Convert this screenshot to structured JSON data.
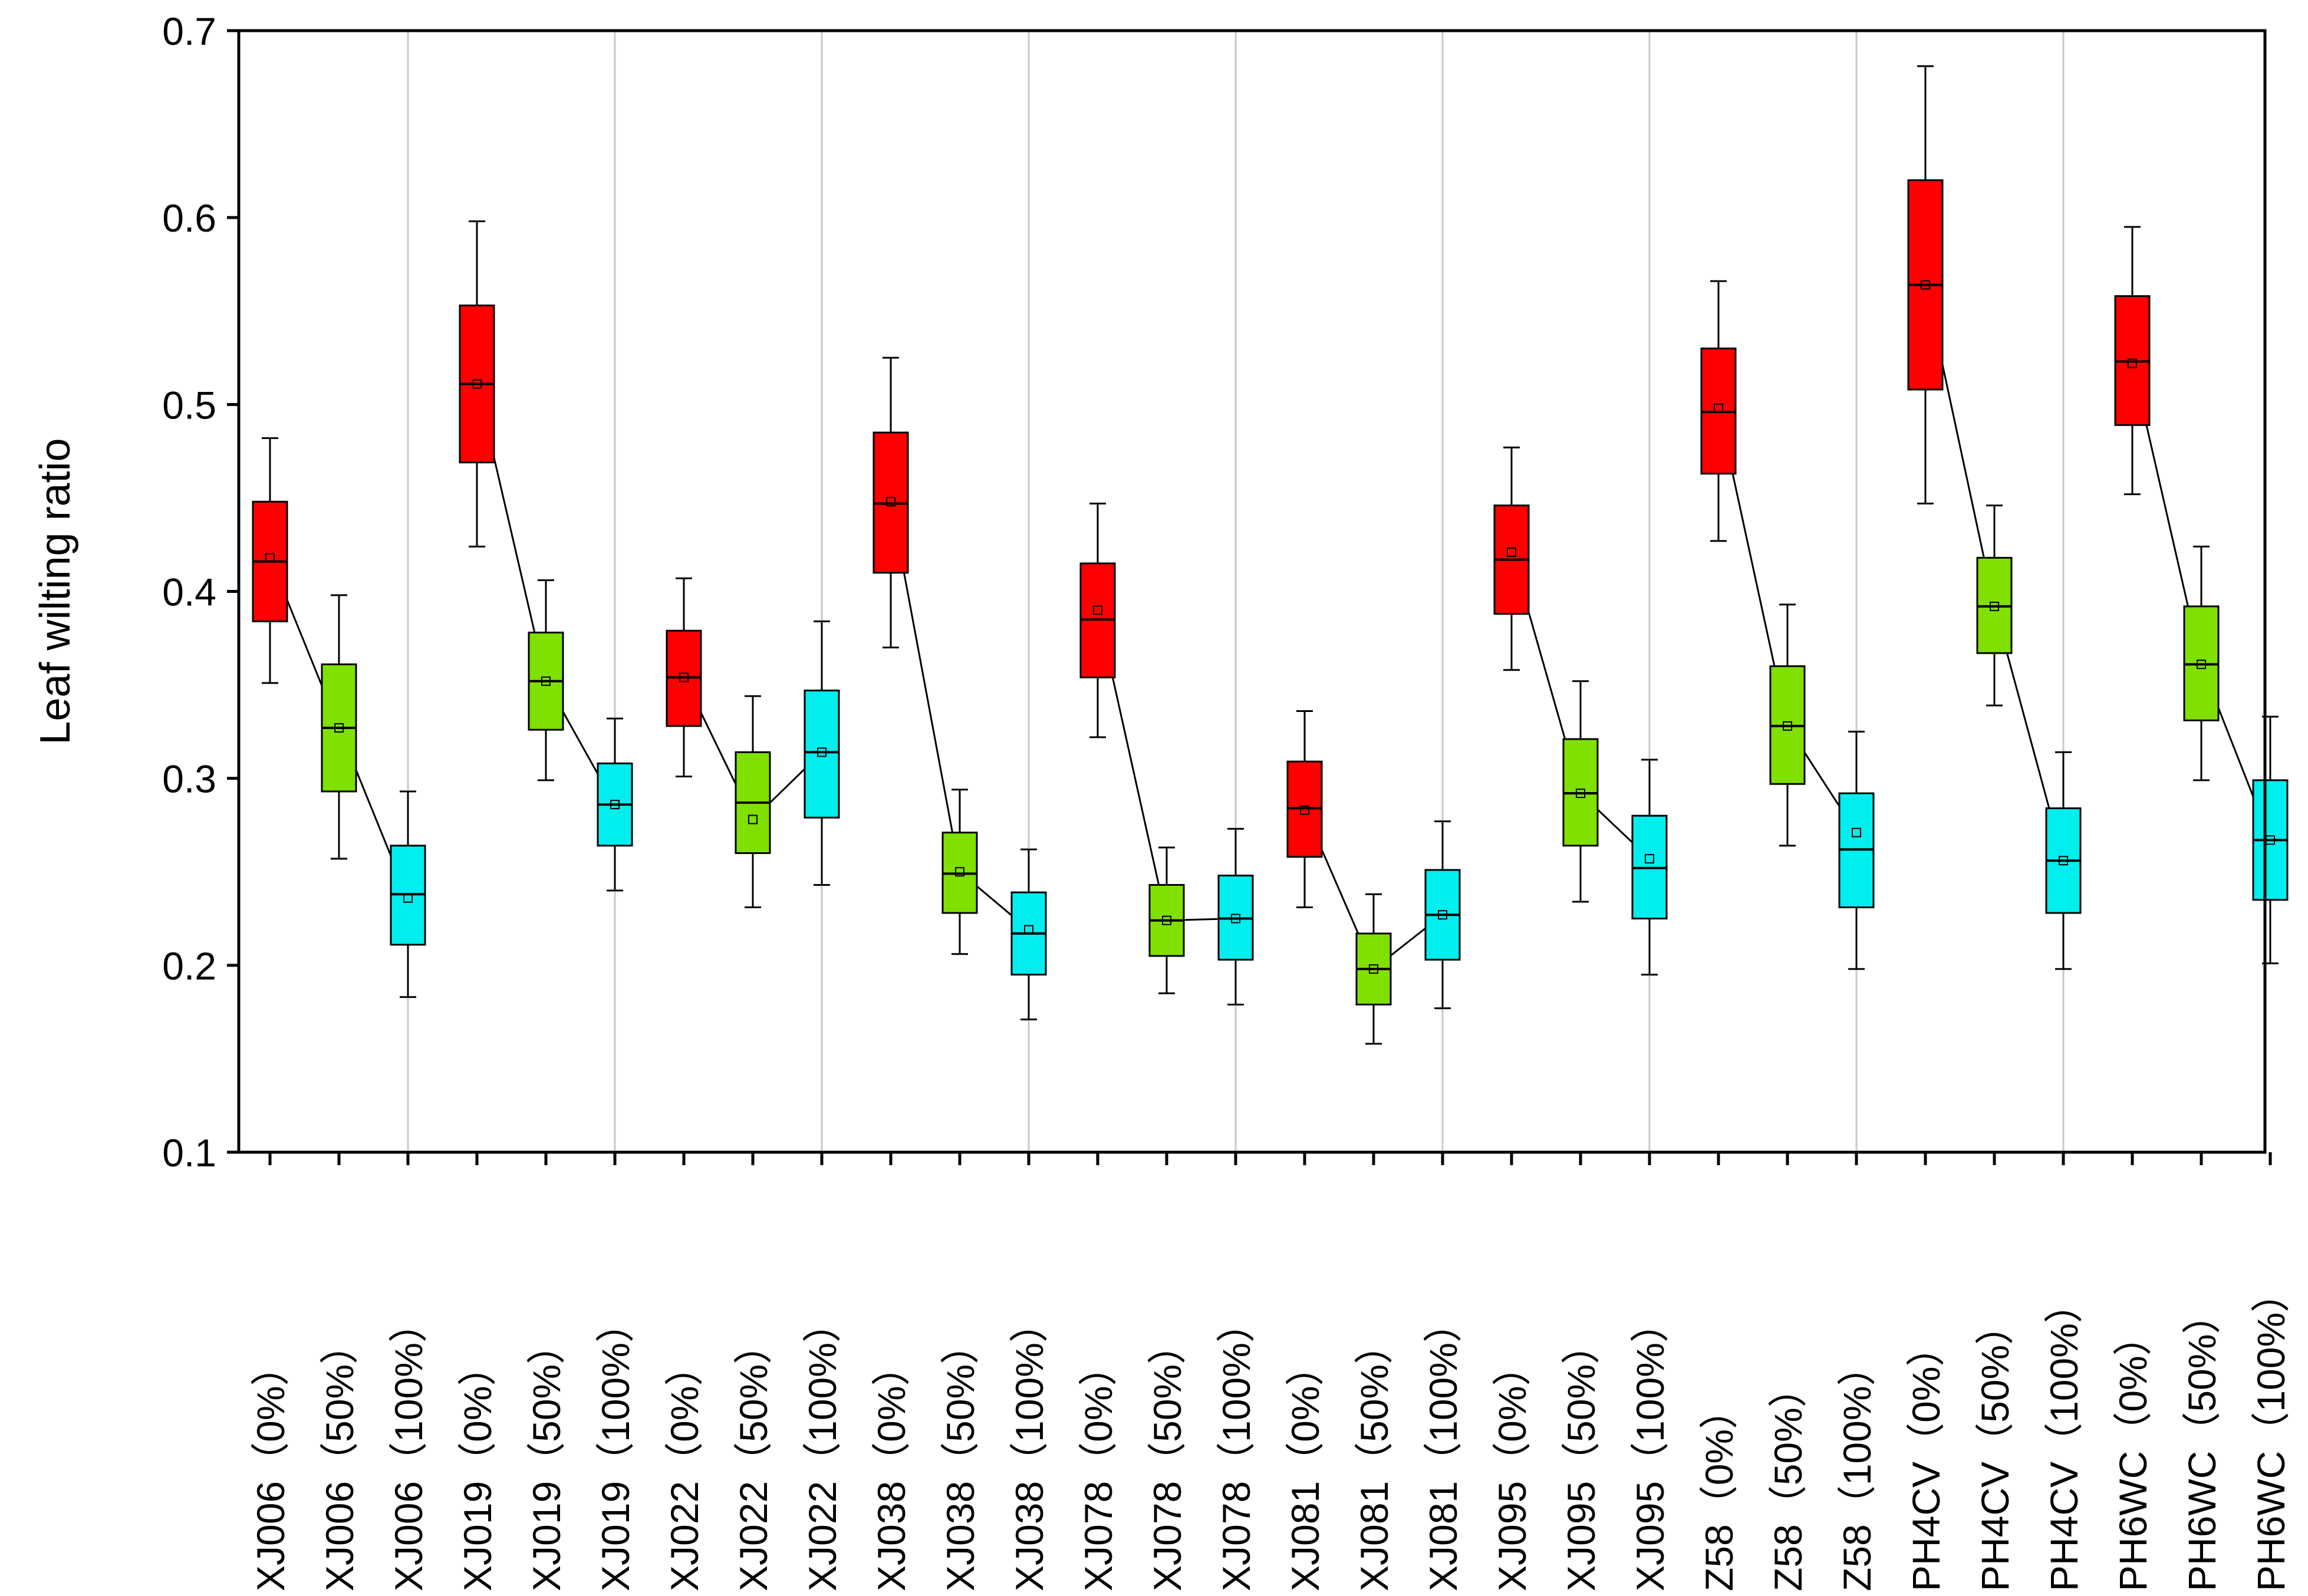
{
  "chart_data": {
    "type": "box",
    "title": "",
    "xlabel": "",
    "ylabel": "Leaf wilting ratio",
    "ylim": [
      0.1,
      0.7
    ],
    "yticks": [
      "0.1",
      "0.2",
      "0.3",
      "0.4",
      "0.5",
      "0.6",
      "0.7"
    ],
    "grid": "vertical lines at every third category",
    "colors": {
      "0%": "#ff0000",
      "50%": "#80e000",
      "100%": "#00eeee"
    },
    "categories": [
      {
        "genotype": "XJ006",
        "treatment": "0%",
        "min": 0.351,
        "q1": 0.384,
        "median": 0.416,
        "q3": 0.448,
        "max": 0.482,
        "mean": 0.418
      },
      {
        "genotype": "XJ006",
        "treatment": "50%",
        "min": 0.257,
        "q1": 0.293,
        "median": 0.327,
        "q3": 0.361,
        "max": 0.398,
        "mean": 0.327
      },
      {
        "genotype": "XJ006",
        "treatment": "100%",
        "min": 0.183,
        "q1": 0.211,
        "median": 0.238,
        "q3": 0.264,
        "max": 0.293,
        "mean": 0.236
      },
      {
        "genotype": "XJ019",
        "treatment": "0%",
        "min": 0.424,
        "q1": 0.469,
        "median": 0.511,
        "q3": 0.553,
        "max": 0.598,
        "mean": 0.511
      },
      {
        "genotype": "XJ019",
        "treatment": "50%",
        "min": 0.299,
        "q1": 0.326,
        "median": 0.352,
        "q3": 0.378,
        "max": 0.406,
        "mean": 0.352
      },
      {
        "genotype": "XJ019",
        "treatment": "100%",
        "min": 0.24,
        "q1": 0.264,
        "median": 0.286,
        "q3": 0.308,
        "max": 0.332,
        "mean": 0.286
      },
      {
        "genotype": "XJ022",
        "treatment": "0%",
        "min": 0.301,
        "q1": 0.328,
        "median": 0.354,
        "q3": 0.379,
        "max": 0.407,
        "mean": 0.354
      },
      {
        "genotype": "XJ022",
        "treatment": "50%",
        "min": 0.231,
        "q1": 0.26,
        "median": 0.287,
        "q3": 0.314,
        "max": 0.344,
        "mean": 0.278
      },
      {
        "genotype": "XJ022",
        "treatment": "100%",
        "min": 0.243,
        "q1": 0.279,
        "median": 0.314,
        "q3": 0.347,
        "max": 0.384,
        "mean": 0.314
      },
      {
        "genotype": "XJ038",
        "treatment": "0%",
        "min": 0.37,
        "q1": 0.41,
        "median": 0.447,
        "q3": 0.485,
        "max": 0.525,
        "mean": 0.448
      },
      {
        "genotype": "XJ038",
        "treatment": "50%",
        "min": 0.206,
        "q1": 0.228,
        "median": 0.249,
        "q3": 0.271,
        "max": 0.294,
        "mean": 0.25
      },
      {
        "genotype": "XJ038",
        "treatment": "100%",
        "min": 0.171,
        "q1": 0.195,
        "median": 0.217,
        "q3": 0.239,
        "max": 0.262,
        "mean": 0.219
      },
      {
        "genotype": "XJ078",
        "treatment": "0%",
        "min": 0.322,
        "q1": 0.354,
        "median": 0.385,
        "q3": 0.415,
        "max": 0.447,
        "mean": 0.39
      },
      {
        "genotype": "XJ078",
        "treatment": "50%",
        "min": 0.185,
        "q1": 0.205,
        "median": 0.224,
        "q3": 0.243,
        "max": 0.263,
        "mean": 0.224
      },
      {
        "genotype": "XJ078",
        "treatment": "100%",
        "min": 0.179,
        "q1": 0.203,
        "median": 0.225,
        "q3": 0.248,
        "max": 0.273,
        "mean": 0.225
      },
      {
        "genotype": "XJ081",
        "treatment": "0%",
        "min": 0.231,
        "q1": 0.258,
        "median": 0.284,
        "q3": 0.309,
        "max": 0.336,
        "mean": 0.283
      },
      {
        "genotype": "XJ081",
        "treatment": "50%",
        "min": 0.158,
        "q1": 0.179,
        "median": 0.198,
        "q3": 0.217,
        "max": 0.238,
        "mean": 0.198
      },
      {
        "genotype": "XJ081",
        "treatment": "100%",
        "min": 0.177,
        "q1": 0.203,
        "median": 0.227,
        "q3": 0.251,
        "max": 0.277,
        "mean": 0.227
      },
      {
        "genotype": "XJ095",
        "treatment": "0%",
        "min": 0.358,
        "q1": 0.388,
        "median": 0.417,
        "q3": 0.446,
        "max": 0.477,
        "mean": 0.421
      },
      {
        "genotype": "XJ095",
        "treatment": "50%",
        "min": 0.234,
        "q1": 0.264,
        "median": 0.292,
        "q3": 0.321,
        "max": 0.352,
        "mean": 0.292
      },
      {
        "genotype": "XJ095",
        "treatment": "100%",
        "min": 0.195,
        "q1": 0.225,
        "median": 0.252,
        "q3": 0.28,
        "max": 0.31,
        "mean": 0.257
      },
      {
        "genotype": "Z58",
        "treatment": "0%",
        "min": 0.427,
        "q1": 0.463,
        "median": 0.496,
        "q3": 0.53,
        "max": 0.566,
        "mean": 0.498
      },
      {
        "genotype": "Z58",
        "treatment": "50%",
        "min": 0.264,
        "q1": 0.297,
        "median": 0.328,
        "q3": 0.36,
        "max": 0.393,
        "mean": 0.328
      },
      {
        "genotype": "Z58",
        "treatment": "100%",
        "min": 0.198,
        "q1": 0.231,
        "median": 0.262,
        "q3": 0.292,
        "max": 0.325,
        "mean": 0.271
      },
      {
        "genotype": "PH4CV",
        "treatment": "0%",
        "min": 0.447,
        "q1": 0.508,
        "median": 0.564,
        "q3": 0.62,
        "max": 0.681,
        "mean": 0.564
      },
      {
        "genotype": "PH4CV",
        "treatment": "50%",
        "min": 0.339,
        "q1": 0.367,
        "median": 0.392,
        "q3": 0.418,
        "max": 0.446,
        "mean": 0.392
      },
      {
        "genotype": "PH4CV",
        "treatment": "100%",
        "min": 0.198,
        "q1": 0.228,
        "median": 0.256,
        "q3": 0.284,
        "max": 0.314,
        "mean": 0.256
      },
      {
        "genotype": "PH6WC",
        "treatment": "0%",
        "min": 0.452,
        "q1": 0.489,
        "median": 0.523,
        "q3": 0.558,
        "max": 0.595,
        "mean": 0.522
      },
      {
        "genotype": "PH6WC",
        "treatment": "50%",
        "min": 0.299,
        "q1": 0.331,
        "median": 0.361,
        "q3": 0.392,
        "max": 0.424,
        "mean": 0.361
      },
      {
        "genotype": "PH6WC",
        "treatment": "100%",
        "min": 0.201,
        "q1": 0.235,
        "median": 0.267,
        "q3": 0.299,
        "max": 0.333,
        "mean": 0.267
      }
    ]
  }
}
